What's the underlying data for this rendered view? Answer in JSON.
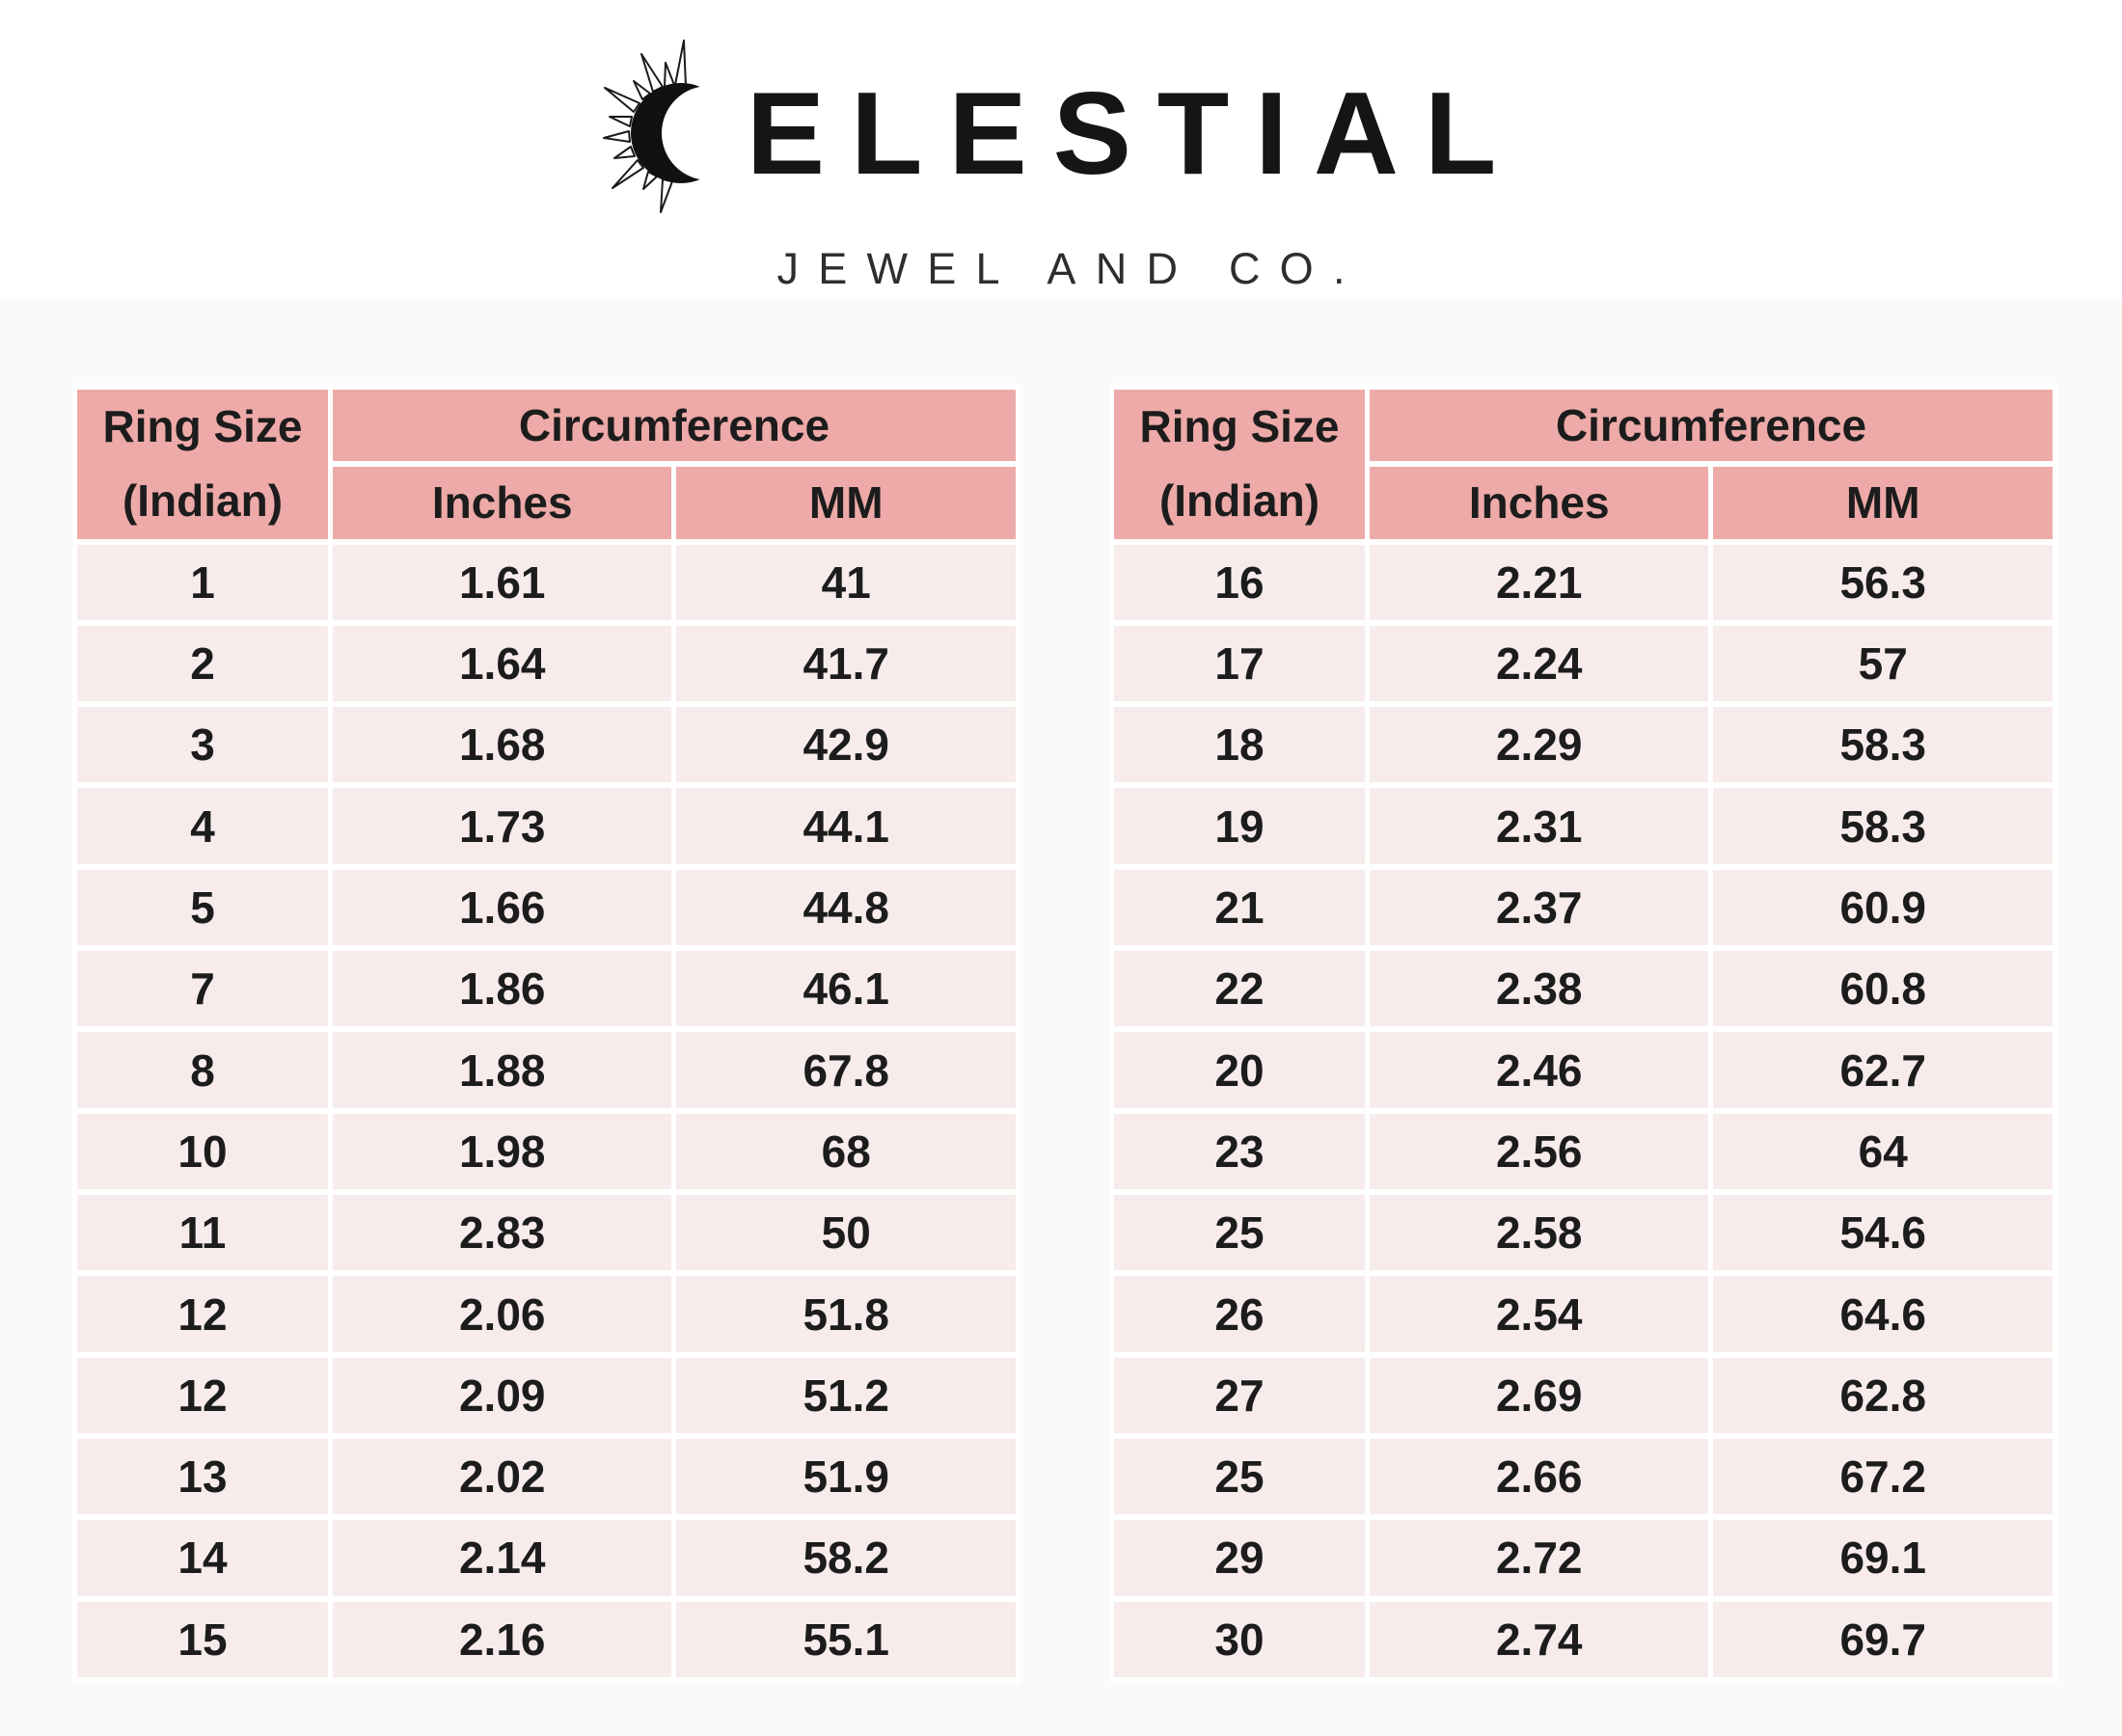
{
  "logo": {
    "brand_name": "CELESTIAL",
    "brand_display": "ELESTIAL",
    "subtitle": "JEWEL AND CO.",
    "icon": "crescent-sun-icon"
  },
  "table_headers": {
    "ring_size_line1": "Ring Size",
    "ring_size_line2": "(Indian)",
    "circumference": "Circumference",
    "inches": "Inches",
    "mm": "MM"
  },
  "colors": {
    "header_bg": "#edaaa8",
    "row_bg": "#f7eceb",
    "text": "#1c1c1c",
    "page_bg": "#fbfaf9"
  },
  "tables": [
    {
      "name": "left",
      "rows": [
        [
          "1",
          "1.61",
          "41"
        ],
        [
          "2",
          "1.64",
          "41.7"
        ],
        [
          "3",
          "1.68",
          "42.9"
        ],
        [
          "4",
          "1.73",
          "44.1"
        ],
        [
          "5",
          "1.66",
          "44.8"
        ],
        [
          "7",
          "1.86",
          "46.1"
        ],
        [
          "8",
          "1.88",
          "67.8"
        ],
        [
          "10",
          "1.98",
          "68"
        ],
        [
          "11",
          "2.83",
          "50"
        ],
        [
          "12",
          "2.06",
          "51.8"
        ],
        [
          "12",
          "2.09",
          "51.2"
        ],
        [
          "13",
          "2.02",
          "51.9"
        ],
        [
          "14",
          "2.14",
          "58.2"
        ],
        [
          "15",
          "2.16",
          "55.1"
        ]
      ]
    },
    {
      "name": "right",
      "rows": [
        [
          "16",
          "2.21",
          "56.3"
        ],
        [
          "17",
          "2.24",
          "57"
        ],
        [
          "18",
          "2.29",
          "58.3"
        ],
        [
          "19",
          "2.31",
          "58.3"
        ],
        [
          "21",
          "2.37",
          "60.9"
        ],
        [
          "22",
          "2.38",
          "60.8"
        ],
        [
          "20",
          "2.46",
          "62.7"
        ],
        [
          "23",
          "2.56",
          "64"
        ],
        [
          "25",
          "2.58",
          "54.6"
        ],
        [
          "26",
          "2.54",
          "64.6"
        ],
        [
          "27",
          "2.69",
          "62.8"
        ],
        [
          "25",
          "2.66",
          "67.2"
        ],
        [
          "29",
          "2.72",
          "69.1"
        ],
        [
          "30",
          "2.74",
          "69.7"
        ]
      ]
    }
  ]
}
